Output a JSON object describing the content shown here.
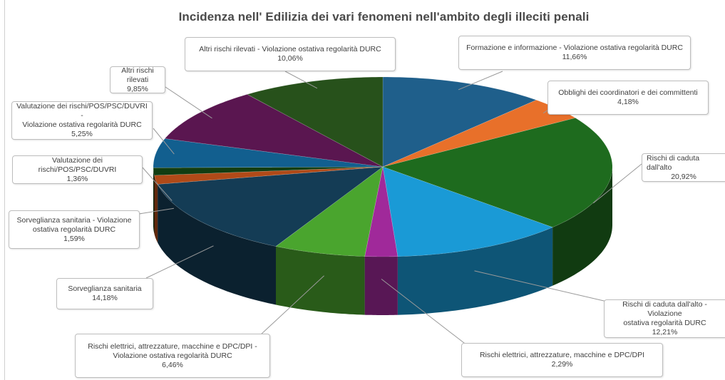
{
  "chart_data": {
    "type": "pie",
    "title": "Incidenza nell' Edilizia dei vari fenomeni nell'ambito degli illeciti penali",
    "three_d": true,
    "slices": [
      {
        "label": "Formazione e informazione - Violazione ostativa regolarità DURC",
        "value": 11.66,
        "display": "11,66%",
        "color": "#1f5f8b"
      },
      {
        "label": "Obblighi dei coordinatori e dei committenti",
        "value": 4.18,
        "display": "4,18%",
        "color": "#e8702a"
      },
      {
        "label": "Rischi di caduta dall'alto",
        "value": 20.92,
        "display": "20,92%",
        "color": "#1e6b1e"
      },
      {
        "label": "Rischi di caduta dall'alto - Violazione ostativa regolarità DURC",
        "value": 12.21,
        "display": "12,21%",
        "color": "#1a9ad6"
      },
      {
        "label": "Rischi elettrici, attrezzature, macchine e DPC/DPI",
        "value": 2.29,
        "display": "2,29%",
        "color": "#a0299a"
      },
      {
        "label": "Rischi elettrici, attrezzature, macchine e DPC/DPI - Violazione ostativa regolarità DURC",
        "value": 6.46,
        "display": "6,46%",
        "color": "#4aa52e"
      },
      {
        "label": "Sorveglianza sanitaria",
        "value": 14.18,
        "display": "14,18%",
        "color": "#143c55"
      },
      {
        "label": "Sorveglianza sanitaria - Violazione ostativa regolarità DURC",
        "value": 1.59,
        "display": "1,59%",
        "color": "#b04a18"
      },
      {
        "label": "Valutazione dei rischi/POS/PSC/DUVRI",
        "value": 1.36,
        "display": "1,36%",
        "color": "#123d12"
      },
      {
        "label": "Valutazione dei rischi/POS/PSC/DUVRI - Violazione ostativa regolarità DURC",
        "value": 5.25,
        "display": "5,25%",
        "color": "#125f8f"
      },
      {
        "label": "Altri rischi rilevati",
        "value": 9.85,
        "display": "9,85%",
        "color": "#5a1650"
      },
      {
        "label": "Altri rischi rilevati - Violazione ostativa regolarità DURC",
        "value": 10.06,
        "display": "10,06%",
        "color": "#27511b"
      }
    ]
  },
  "callouts": [
    {
      "text": "Formazione e informazione - Violazione ostativa regolarità DURC"
    },
    {
      "text": "Obblighi dei coordinatori e dei committenti"
    },
    {
      "text": "Rischi di caduta dall'alto"
    },
    {
      "text": "Rischi di caduta dall'alto - Violazione\nostativa regolarità DURC"
    },
    {
      "text": "Rischi elettrici, attrezzature, macchine e DPC/DPI"
    },
    {
      "text": "Rischi elettrici, attrezzature, macchine e DPC/DPI -\nViolazione ostativa regolarità DURC"
    },
    {
      "text": "Sorveglianza sanitaria"
    },
    {
      "text": "Sorveglianza sanitaria - Violazione\nostativa regolarità DURC"
    },
    {
      "text": "Valutazione dei rischi/POS/PSC/DUVRI"
    },
    {
      "text": "Valutazione dei rischi/POS/PSC/DUVRI -\nViolazione ostativa regolarità DURC"
    },
    {
      "text": "Altri rischi rilevati"
    },
    {
      "text": "Altri rischi rilevati - Violazione ostativa regolarità DURC"
    }
  ]
}
